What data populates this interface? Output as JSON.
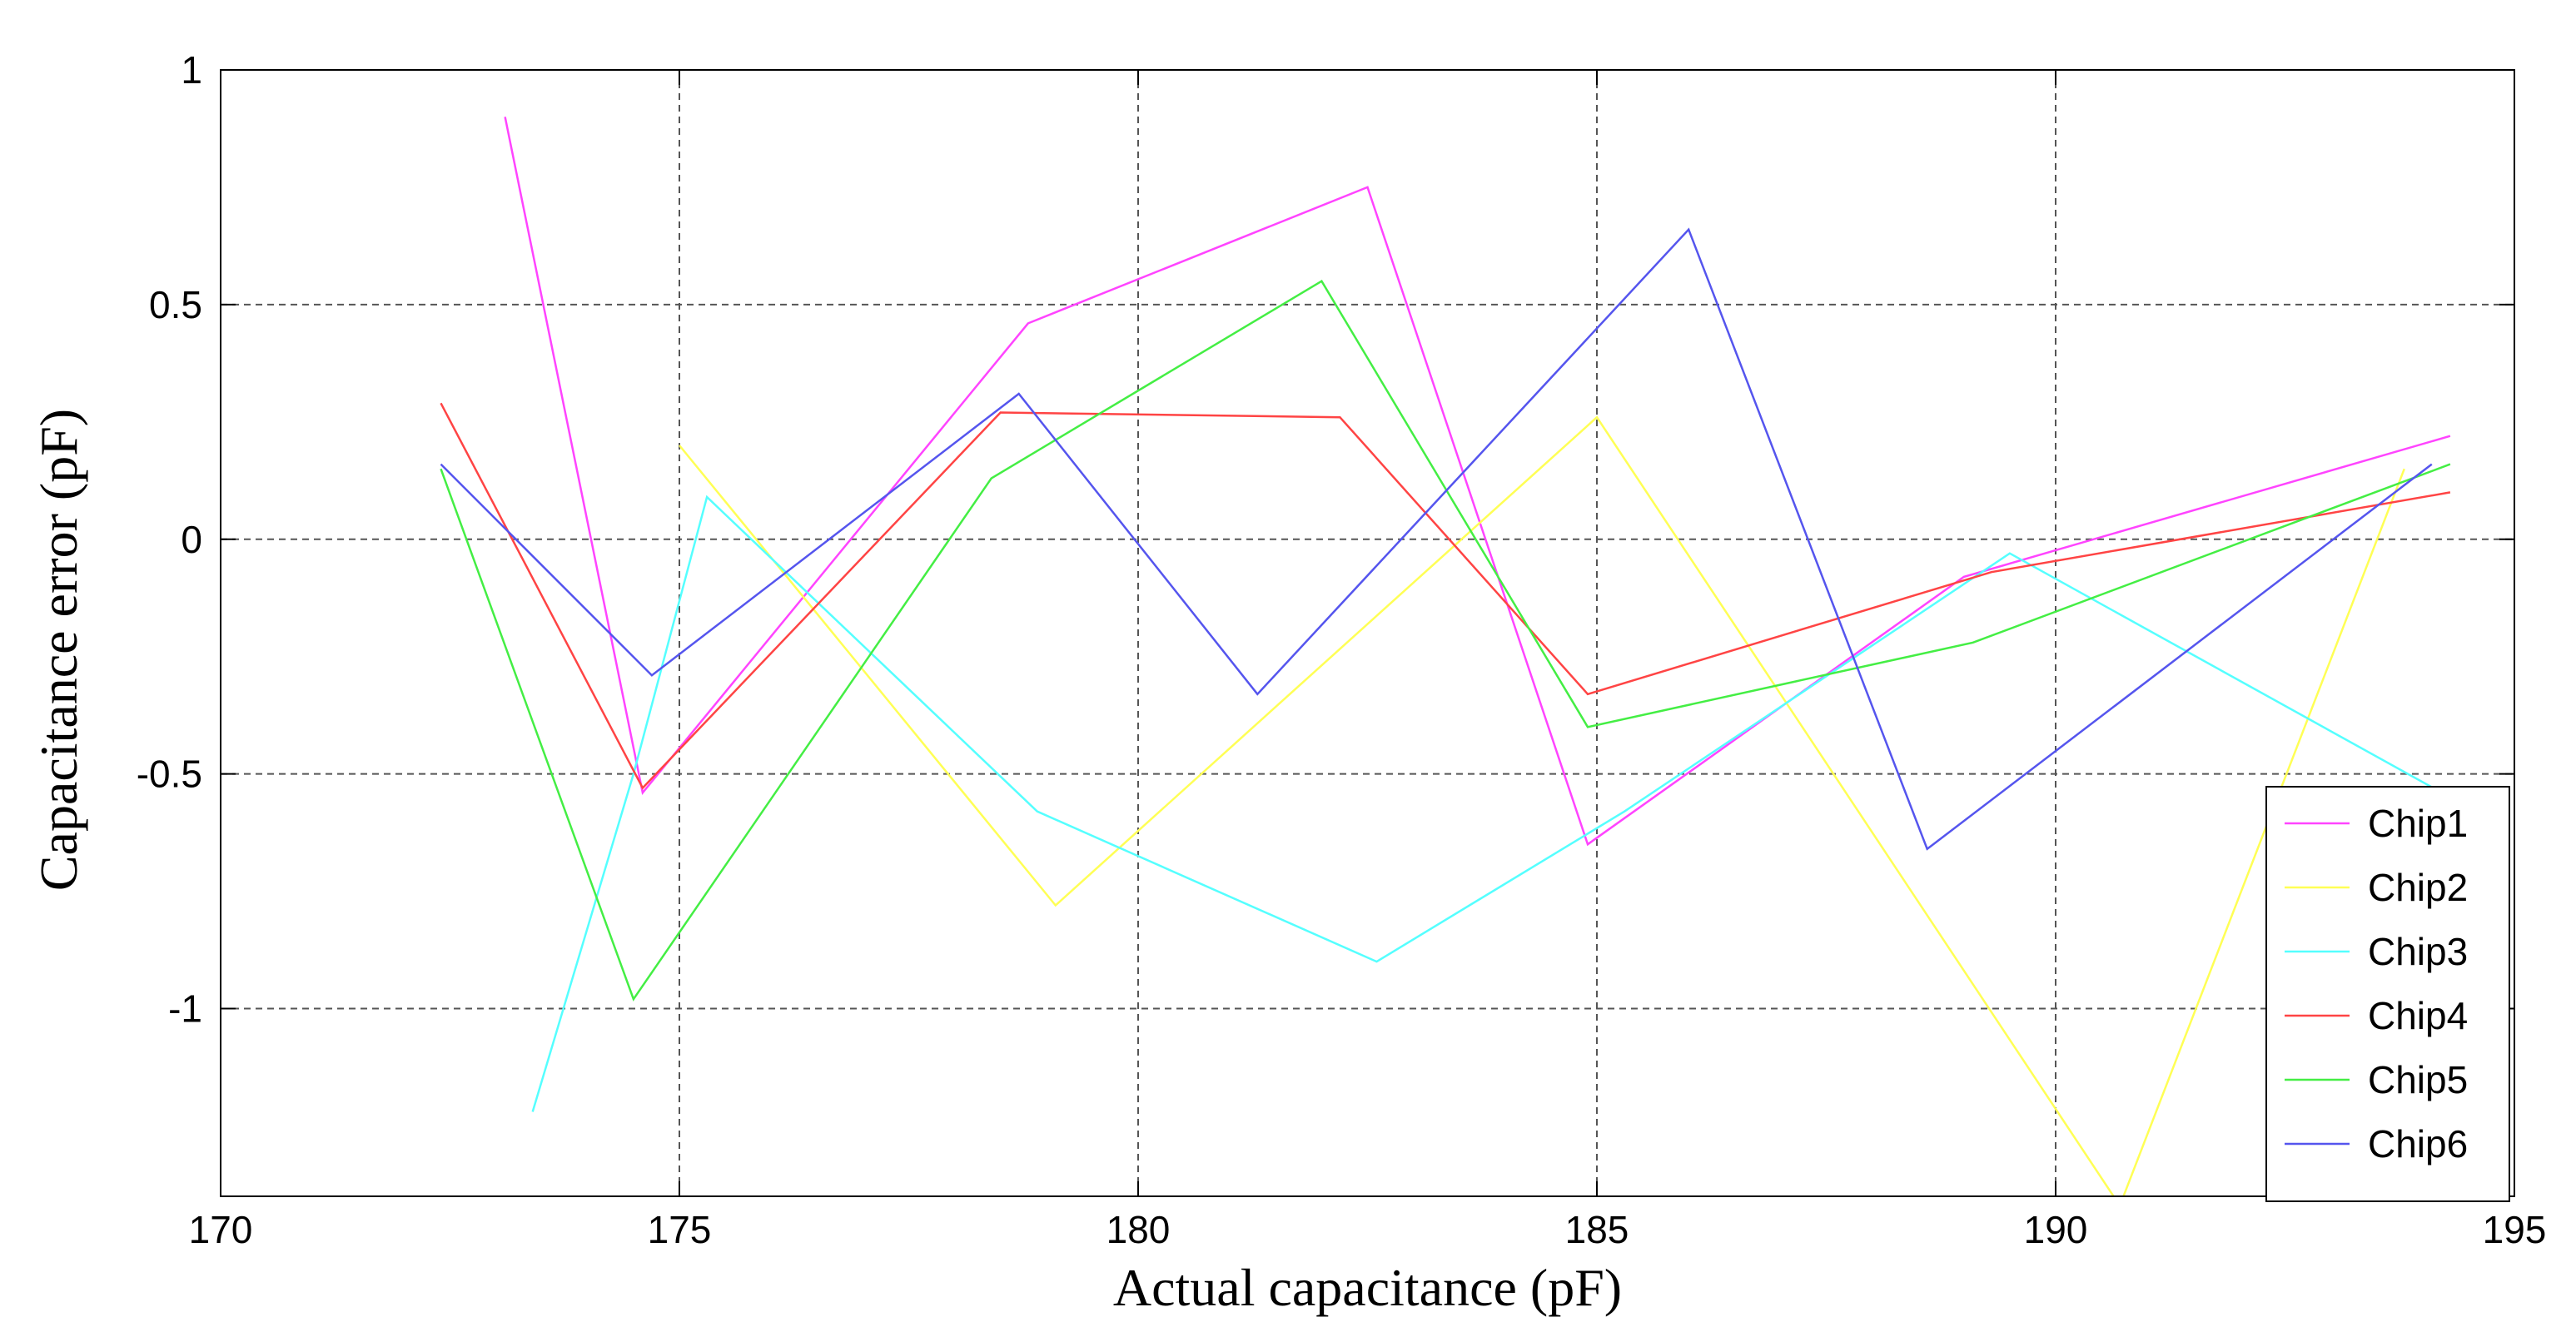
{
  "chart_data": {
    "type": "line",
    "title": "",
    "xlabel": "Actual capacitance (pF)",
    "ylabel": "Capacitance error (pF)",
    "xlim": [
      170,
      195
    ],
    "ylim": [
      -1.4,
      1
    ],
    "xticks": [
      170,
      175,
      180,
      185,
      190,
      195
    ],
    "yticks": [
      -1,
      -0.5,
      0,
      0.5,
      1
    ],
    "xtick_labels": [
      "170",
      "175",
      "180",
      "185",
      "190",
      "195"
    ],
    "ytick_labels": [
      "-1",
      "-0.5",
      "0",
      "0.5",
      "1"
    ],
    "grid": true,
    "grid_style": "dashed",
    "legend_position": "bottom-right",
    "series": [
      {
        "name": "Chip1",
        "color": "#ff44ff",
        "x": [
          173.1,
          174.6,
          178.8,
          182.5,
          184.9,
          189.0,
          194.3
        ],
        "y": [
          0.9,
          -0.54,
          0.46,
          0.75,
          -0.65,
          -0.08,
          0.22
        ]
      },
      {
        "name": "Chip2",
        "color": "#ffff55",
        "x": [
          175.0,
          179.1,
          185.0,
          190.7,
          193.8
        ],
        "y": [
          0.2,
          -0.78,
          0.26,
          -1.42,
          0.15
        ]
      },
      {
        "name": "Chip3",
        "color": "#55ffff",
        "x": [
          173.4,
          174.5,
          175.3,
          178.9,
          182.6,
          185.3,
          189.5,
          194.3
        ],
        "y": [
          -1.22,
          -0.5,
          0.09,
          -0.58,
          -0.9,
          -0.58,
          -0.03,
          -0.55
        ]
      },
      {
        "name": "Chip4",
        "color": "#ff4444",
        "x": [
          172.4,
          174.6,
          178.5,
          182.2,
          184.9,
          189.3,
          194.3
        ],
        "y": [
          0.29,
          -0.53,
          0.27,
          0.26,
          -0.33,
          -0.07,
          0.1
        ]
      },
      {
        "name": "Chip5",
        "color": "#44ee44",
        "x": [
          172.4,
          174.5,
          178.4,
          182.0,
          184.9,
          189.1,
          194.3
        ],
        "y": [
          0.15,
          -0.98,
          0.13,
          0.55,
          -0.4,
          -0.22,
          0.16
        ]
      },
      {
        "name": "Chip6",
        "color": "#5555ee",
        "x": [
          172.4,
          174.7,
          178.7,
          181.3,
          186.0,
          188.6,
          194.1
        ],
        "y": [
          0.16,
          -0.29,
          0.31,
          -0.33,
          0.66,
          -0.66,
          0.16
        ]
      }
    ]
  }
}
